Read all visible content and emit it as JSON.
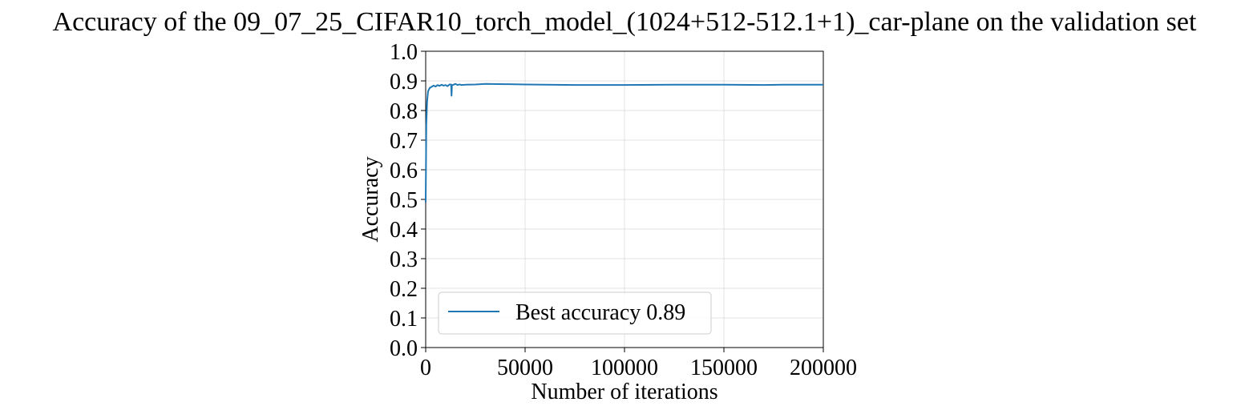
{
  "chart_data": {
    "type": "line",
    "title": "Accuracy of the 09_07_25_CIFAR10_torch_model_(1024+512-512.1+1)_car-plane on the validation set",
    "xlabel": "Number of iterations",
    "ylabel": "Accuracy",
    "xlim": [
      0,
      200000
    ],
    "ylim": [
      0,
      1
    ],
    "xticks": [
      0,
      50000,
      100000,
      150000,
      200000
    ],
    "xtick_labels": [
      "0",
      "50000",
      "100000",
      "150000",
      "200000"
    ],
    "yticks": [
      0.0,
      0.1,
      0.2,
      0.3,
      0.4,
      0.5,
      0.6,
      0.7,
      0.8,
      0.9,
      1.0
    ],
    "ytick_labels": [
      "0.0",
      "0.1",
      "0.2",
      "0.3",
      "0.4",
      "0.5",
      "0.6",
      "0.7",
      "0.8",
      "0.9",
      "1.0"
    ],
    "grid": true,
    "legend_position": "lower-left",
    "series": [
      {
        "name": "Best accuracy 0.89",
        "color": "#1f77b4",
        "x": [
          0,
          300,
          700,
          1200,
          2000,
          3000,
          4000,
          5000,
          6000,
          7000,
          8000,
          9000,
          10000,
          11000,
          12000,
          12800,
          13000,
          13200,
          14000,
          15000,
          16000,
          17000,
          18000,
          20000,
          25000,
          30000,
          40000,
          50000,
          60000,
          75000,
          100000,
          125000,
          150000,
          170000,
          180000,
          200000
        ],
        "y": [
          0.49,
          0.75,
          0.83,
          0.865,
          0.876,
          0.88,
          0.884,
          0.881,
          0.886,
          0.883,
          0.887,
          0.884,
          0.886,
          0.882,
          0.888,
          0.888,
          0.85,
          0.885,
          0.887,
          0.89,
          0.886,
          0.888,
          0.886,
          0.887,
          0.888,
          0.89,
          0.889,
          0.888,
          0.887,
          0.886,
          0.886,
          0.887,
          0.887,
          0.886,
          0.887,
          0.887
        ]
      }
    ]
  }
}
